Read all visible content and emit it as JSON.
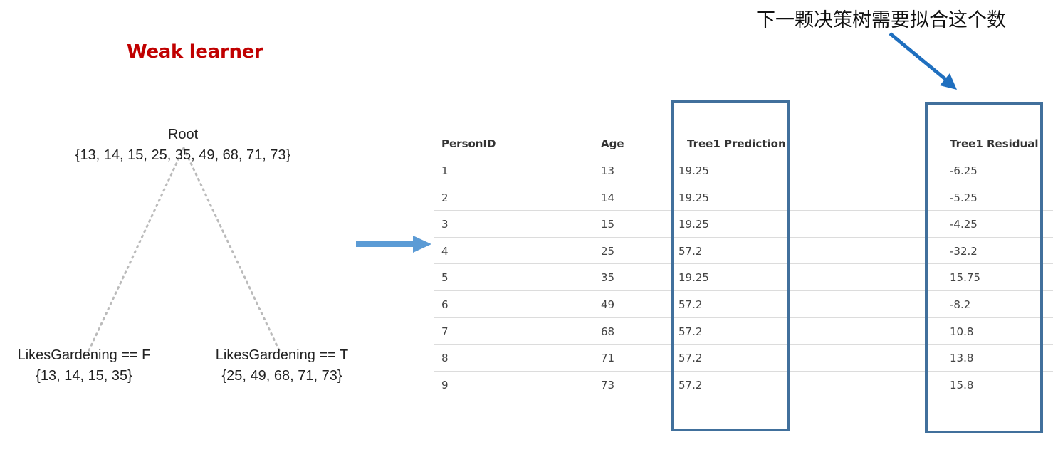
{
  "title": "Weak learner",
  "annotation": "下一颗决策树需要拟合这个数",
  "tree": {
    "root": {
      "label": "Root",
      "values": "{13, 14, 15, 25, 35, 49, 68, 71, 73}"
    },
    "left": {
      "label": "LikesGardening == F",
      "values": "{13, 14, 15, 35}"
    },
    "right": {
      "label": "LikesGardening == T",
      "values": "{25, 49, 68, 71, 73}"
    }
  },
  "table": {
    "headers": {
      "person_id": "PersonID",
      "age": "Age",
      "prediction": "Tree1 Prediction",
      "residual": "Tree1 Residual"
    },
    "rows": [
      {
        "person_id": "1",
        "age": "13",
        "prediction": "19.25",
        "residual": "-6.25"
      },
      {
        "person_id": "2",
        "age": "14",
        "prediction": "19.25",
        "residual": "-5.25"
      },
      {
        "person_id": "3",
        "age": "15",
        "prediction": "19.25",
        "residual": "-4.25"
      },
      {
        "person_id": "4",
        "age": "25",
        "prediction": "57.2",
        "residual": "-32.2"
      },
      {
        "person_id": "5",
        "age": "35",
        "prediction": "19.25",
        "residual": "15.75"
      },
      {
        "person_id": "6",
        "age": "49",
        "prediction": "57.2",
        "residual": "-8.2"
      },
      {
        "person_id": "7",
        "age": "68",
        "prediction": "57.2",
        "residual": "10.8"
      },
      {
        "person_id": "8",
        "age": "71",
        "prediction": "57.2",
        "residual": "13.8"
      },
      {
        "person_id": "9",
        "age": "73",
        "prediction": "57.2",
        "residual": "15.8"
      }
    ]
  },
  "colors": {
    "title": "#c00000",
    "arrow": "#5b9bd5",
    "annotation_arrow": "#1f6fbf",
    "box": "#41709c"
  }
}
